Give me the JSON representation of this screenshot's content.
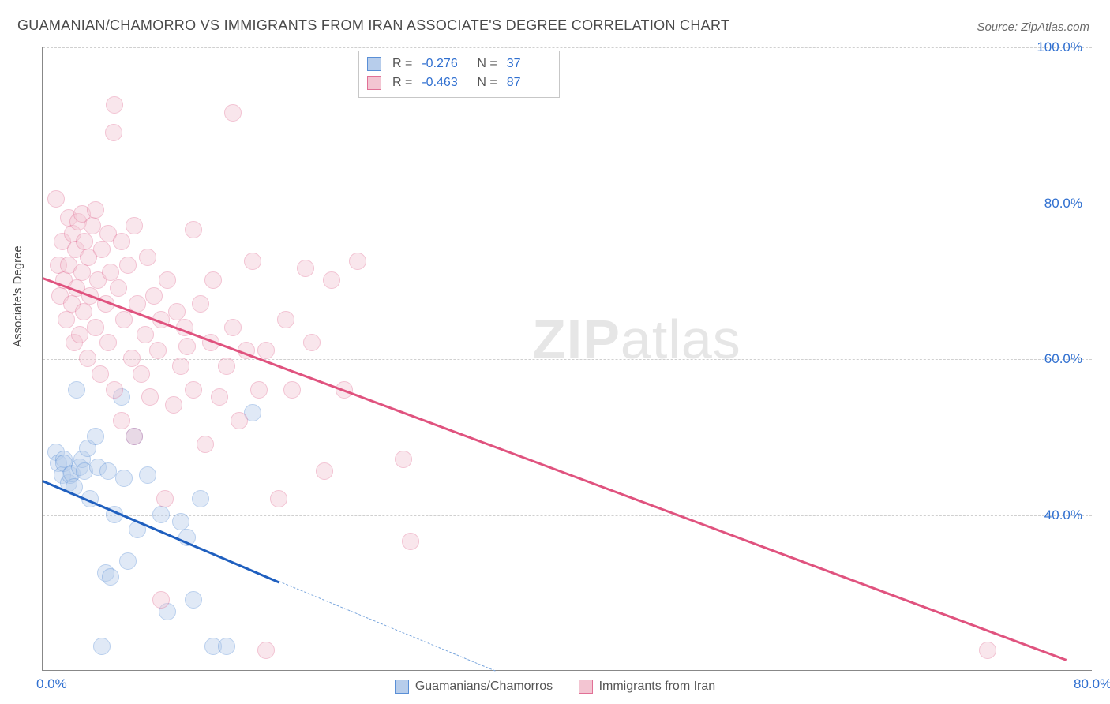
{
  "title": "GUAMANIAN/CHAMORRO VS IMMIGRANTS FROM IRAN ASSOCIATE'S DEGREE CORRELATION CHART",
  "source": "Source: ZipAtlas.com",
  "ylabel": "Associate's Degree",
  "watermark_zip": "ZIP",
  "watermark_atlas": "atlas",
  "chart": {
    "type": "scatter",
    "xlim": [
      0,
      80
    ],
    "ylim": [
      20,
      100
    ],
    "x_ticks": [
      0,
      10,
      20,
      30,
      40,
      50,
      60,
      70,
      80
    ],
    "x_tick_labels": {
      "0": "0.0%",
      "80": "80.0%"
    },
    "y_gridlines": [
      40,
      60,
      80,
      100
    ],
    "y_tick_labels": [
      "40.0%",
      "60.0%",
      "80.0%",
      "100.0%"
    ],
    "background_color": "#ffffff",
    "grid_color": "#d0d0d0",
    "axis_color": "#888888",
    "tick_label_color": "#2f6fd0",
    "title_color": "#4a4a4a",
    "title_fontsize": 18,
    "tick_fontsize": 17,
    "marker_radius": 11,
    "marker_opacity": 0.42,
    "marker_stroke_width": 1.3,
    "series": [
      {
        "name": "Guamanians/Chamorros",
        "fill": "#b7cdeb",
        "stroke": "#5a8fd6",
        "legend_fill": "#b7cdeb",
        "legend_stroke": "#5a8fd6",
        "R": "-0.276",
        "N": "37",
        "trend": {
          "x1": 0,
          "y1": 44.5,
          "x2": 18,
          "y2": 31.5,
          "color": "#1f5fbf",
          "width": 3,
          "dash": false
        },
        "trend_ext": {
          "x1": 18,
          "y1": 31.5,
          "x2": 34.5,
          "y2": 20,
          "color": "#7aa6dd",
          "width": 1.3,
          "dash": true
        },
        "points": [
          [
            1.0,
            48.0
          ],
          [
            1.2,
            46.5
          ],
          [
            1.5,
            45.0
          ],
          [
            1.6,
            47.0
          ],
          [
            1.6,
            46.5
          ],
          [
            2.0,
            44.0
          ],
          [
            2.1,
            45.0
          ],
          [
            2.2,
            45.2
          ],
          [
            2.4,
            43.5
          ],
          [
            2.6,
            56.0
          ],
          [
            2.8,
            46.0
          ],
          [
            3.0,
            47.0
          ],
          [
            3.2,
            45.5
          ],
          [
            3.4,
            48.5
          ],
          [
            3.6,
            42.0
          ],
          [
            4.0,
            50.0
          ],
          [
            4.2,
            46.0
          ],
          [
            4.8,
            32.5
          ],
          [
            5.0,
            45.5
          ],
          [
            5.2,
            32.0
          ],
          [
            5.5,
            40.0
          ],
          [
            6.0,
            55.0
          ],
          [
            6.2,
            44.6
          ],
          [
            6.5,
            34.0
          ],
          [
            7.0,
            50.0
          ],
          [
            7.2,
            38.0
          ],
          [
            8.0,
            45.0
          ],
          [
            9.0,
            40.0
          ],
          [
            9.5,
            27.5
          ],
          [
            10.5,
            39.0
          ],
          [
            11.0,
            37.0
          ],
          [
            11.5,
            29.0
          ],
          [
            12.0,
            42.0
          ],
          [
            13.0,
            23.0
          ],
          [
            14.0,
            23.0
          ],
          [
            4.5,
            23.0
          ],
          [
            16.0,
            53.0
          ]
        ]
      },
      {
        "name": "Immigrants from Iran",
        "fill": "#f3c5d2",
        "stroke": "#e17096",
        "legend_fill": "#f3c5d2",
        "legend_stroke": "#e17096",
        "R": "-0.463",
        "N": "87",
        "trend": {
          "x1": 0,
          "y1": 70.5,
          "x2": 78,
          "y2": 21.5,
          "color": "#e0537f",
          "width": 3,
          "dash": false
        },
        "points": [
          [
            1.0,
            80.5
          ],
          [
            1.2,
            72.0
          ],
          [
            1.3,
            68.0
          ],
          [
            1.5,
            75.0
          ],
          [
            1.6,
            70.0
          ],
          [
            1.8,
            65.0
          ],
          [
            2.0,
            78.0
          ],
          [
            2.0,
            72.0
          ],
          [
            2.2,
            67.0
          ],
          [
            2.3,
            76.0
          ],
          [
            2.4,
            62.0
          ],
          [
            2.5,
            74.0
          ],
          [
            2.6,
            69.0
          ],
          [
            2.7,
            77.5
          ],
          [
            2.8,
            63.0
          ],
          [
            3.0,
            78.5
          ],
          [
            3.0,
            71.0
          ],
          [
            3.1,
            66.0
          ],
          [
            3.2,
            75.0
          ],
          [
            3.4,
            60.0
          ],
          [
            3.5,
            73.0
          ],
          [
            3.6,
            68.0
          ],
          [
            3.8,
            77.0
          ],
          [
            4.0,
            64.0
          ],
          [
            4.0,
            79.0
          ],
          [
            4.2,
            70.0
          ],
          [
            4.4,
            58.0
          ],
          [
            4.5,
            74.0
          ],
          [
            4.8,
            67.0
          ],
          [
            5.0,
            76.0
          ],
          [
            5.0,
            62.0
          ],
          [
            5.2,
            71.0
          ],
          [
            5.4,
            89.0
          ],
          [
            5.5,
            56.0
          ],
          [
            5.8,
            69.0
          ],
          [
            6.0,
            75.0
          ],
          [
            6.0,
            52.0
          ],
          [
            6.2,
            65.0
          ],
          [
            6.5,
            72.0
          ],
          [
            6.8,
            60.0
          ],
          [
            7.0,
            77.0
          ],
          [
            7.0,
            50.0
          ],
          [
            7.2,
            67.0
          ],
          [
            7.5,
            58.0
          ],
          [
            7.8,
            63.0
          ],
          [
            8.0,
            73.0
          ],
          [
            8.2,
            55.0
          ],
          [
            8.5,
            68.0
          ],
          [
            8.8,
            61.0
          ],
          [
            9.0,
            65.0
          ],
          [
            9.3,
            42.0
          ],
          [
            9.5,
            70.0
          ],
          [
            10.0,
            54.0
          ],
          [
            10.2,
            66.0
          ],
          [
            10.5,
            59.0
          ],
          [
            10.8,
            64.0
          ],
          [
            11.0,
            61.5
          ],
          [
            11.5,
            56.0
          ],
          [
            12.0,
            67.0
          ],
          [
            12.4,
            49.0
          ],
          [
            12.8,
            62.0
          ],
          [
            13.0,
            70.0
          ],
          [
            13.5,
            55.0
          ],
          [
            14.0,
            59.0
          ],
          [
            14.5,
            64.0
          ],
          [
            15.0,
            52.0
          ],
          [
            5.5,
            92.5
          ],
          [
            15.5,
            61.0
          ],
          [
            16.0,
            72.5
          ],
          [
            16.5,
            56.0
          ],
          [
            17.0,
            61.0
          ],
          [
            18.0,
            42.0
          ],
          [
            18.5,
            65.0
          ],
          [
            19.0,
            56.0
          ],
          [
            20.5,
            62.0
          ],
          [
            20.0,
            71.5
          ],
          [
            21.5,
            45.5
          ],
          [
            22.0,
            70.0
          ],
          [
            23.0,
            56.0
          ],
          [
            24.0,
            72.5
          ],
          [
            9.0,
            29.0
          ],
          [
            28.0,
            36.5
          ],
          [
            11.5,
            76.5
          ],
          [
            17.0,
            22.5
          ],
          [
            14.5,
            91.5
          ],
          [
            27.5,
            47.0
          ],
          [
            72.0,
            22.5
          ]
        ]
      }
    ]
  }
}
